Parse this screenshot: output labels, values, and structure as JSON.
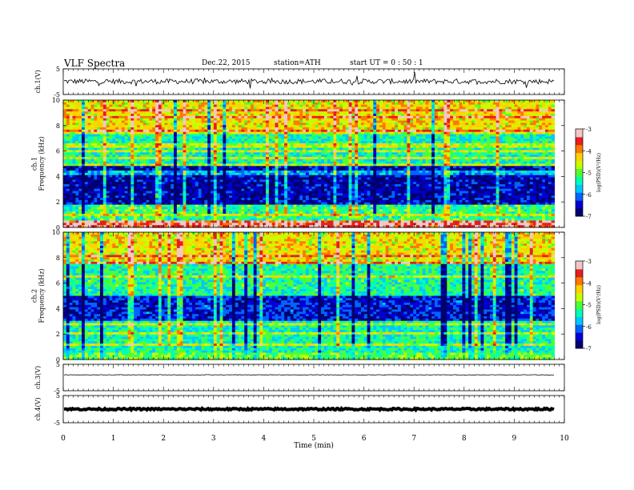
{
  "header": {
    "title": "VLF  Spectra",
    "date": "Dec.22, 2015",
    "station": "station=ATH",
    "start": "start  UT  =   0  : 50 : 1"
  },
  "colors": {
    "colormap": [
      "#00006e",
      "#0000d2",
      "#0064ff",
      "#00c8ff",
      "#00ffb4",
      "#50ff32",
      "#c8ff00",
      "#ffd200",
      "#ff7800",
      "#e61e1e",
      "#f0c8c8"
    ]
  },
  "chart_data": [
    {
      "type": "line",
      "ylabel": "ch.1(V)",
      "ylim": [
        -5,
        5
      ],
      "yticks": [
        "5",
        "-5"
      ],
      "description_values": {
        "baseline": 0.1,
        "noise_amplitude": 1.0
      }
    },
    {
      "type": "heatmap",
      "ylabel": "ch.1\nFrequency  (kHz)",
      "ylim": [
        0,
        10
      ],
      "yticks": [
        "0",
        "2",
        "4",
        "6",
        "8",
        "10"
      ],
      "colorbar": {
        "label": "log(PSD)(V²/Hz)",
        "range": [
          -7,
          -3
        ],
        "ticks": [
          "-3",
          "-4",
          "-5",
          "-6",
          "-7"
        ]
      },
      "bands_khz": [
        {
          "from": 0,
          "to": 0.5,
          "level": -3.4
        },
        {
          "from": 0.5,
          "to": 1.8,
          "level": -5.2
        },
        {
          "from": 1.8,
          "to": 4.8,
          "level": -6.6
        },
        {
          "from": 4.8,
          "to": 7.5,
          "level": -5.4
        },
        {
          "from": 7.5,
          "to": 10,
          "level": -4.4
        }
      ]
    },
    {
      "type": "heatmap",
      "ylabel": "ch.2\nFrequency  (kHz)",
      "ylim": [
        0,
        10
      ],
      "yticks": [
        "0",
        "2",
        "4",
        "6",
        "8",
        "10"
      ],
      "colorbar": {
        "label": "log(PSD)(V²/Hz)",
        "range": [
          -7,
          -3
        ],
        "ticks": [
          "-3",
          "-4",
          "-5",
          "-6",
          "-7"
        ]
      },
      "bands_khz": [
        {
          "from": 0,
          "to": 0.6,
          "level": -5.0
        },
        {
          "from": 0.6,
          "to": 3.0,
          "level": -5.4
        },
        {
          "from": 3.0,
          "to": 5.0,
          "level": -6.4
        },
        {
          "from": 5.0,
          "to": 7.5,
          "level": -5.3
        },
        {
          "from": 7.5,
          "to": 10,
          "level": -4.4
        }
      ]
    },
    {
      "type": "line",
      "ylabel": "ch.3(V)",
      "ylim": [
        -5,
        5
      ],
      "yticks": [
        "5",
        "-5"
      ],
      "description_values": {
        "baseline": 1.0,
        "noise_amplitude": 0.1
      }
    },
    {
      "type": "line",
      "ylabel": "ch.4(V)",
      "ylim": [
        -5,
        5
      ],
      "yticks": [
        "5",
        "-5"
      ],
      "description_values": {
        "baseline": 0.0,
        "noise_amplitude": 0.3
      }
    }
  ],
  "x_axis": {
    "label": "Time  (min)",
    "range": [
      0,
      10
    ],
    "ticks": [
      "0",
      "1",
      "2",
      "3",
      "4",
      "5",
      "6",
      "7",
      "8",
      "9",
      "10"
    ],
    "data_end": 9.8
  }
}
